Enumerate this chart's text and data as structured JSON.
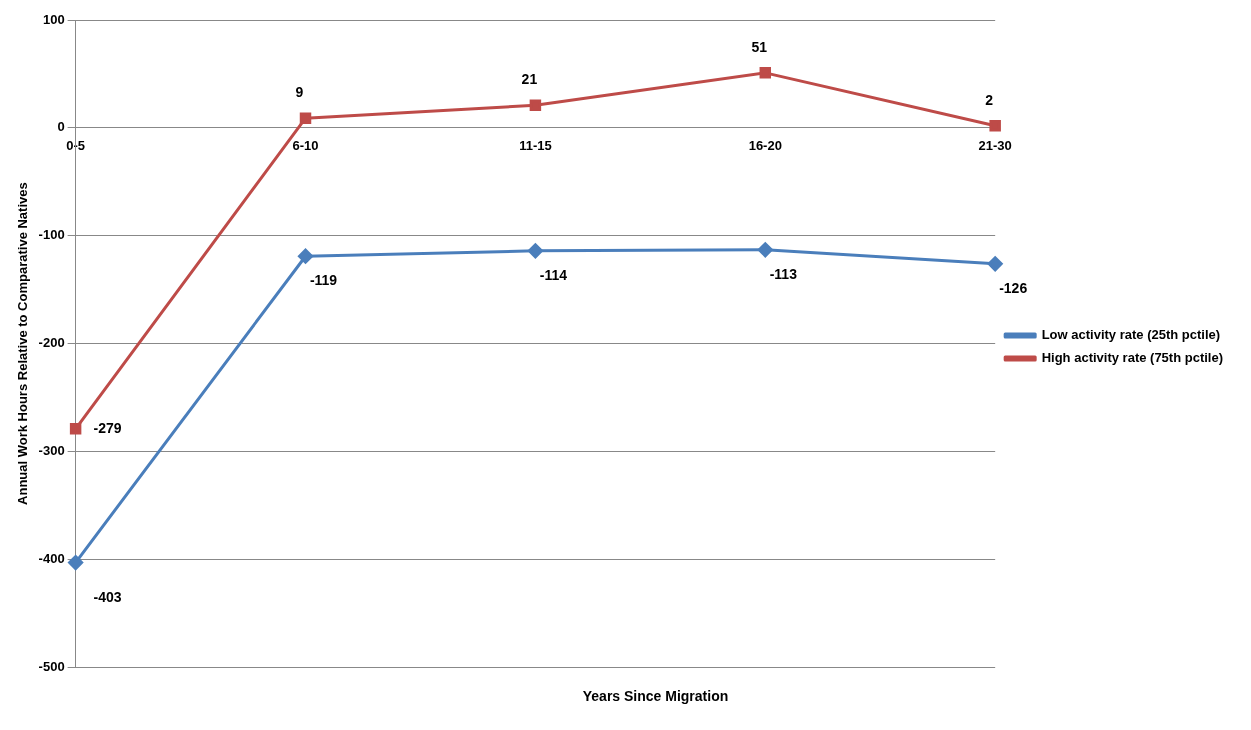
{
  "chart_data": {
    "type": "line",
    "xlabel": "Years Since Migration",
    "ylabel": "Annual Work Hours Relative to Comparative Natives",
    "categories": [
      "0-5",
      "6-10",
      "11-15",
      "16-20",
      "21-30"
    ],
    "series": [
      {
        "name": "Low activity rate (25th pctile)",
        "color": "#4a7ebb",
        "marker": "diamond",
        "values": [
          -403,
          -119,
          -114,
          -113,
          -126
        ]
      },
      {
        "name": "High activity rate (75th pctile)",
        "color": "#be4b48",
        "marker": "square",
        "values": [
          -279,
          9,
          21,
          51,
          2
        ]
      }
    ],
    "ylim": [
      -500,
      100
    ],
    "yticks": [
      -500,
      -400,
      -300,
      -200,
      -100,
      0,
      100
    ],
    "grid": "y",
    "legend": "right",
    "data_labels": true,
    "line_style": "solid"
  }
}
